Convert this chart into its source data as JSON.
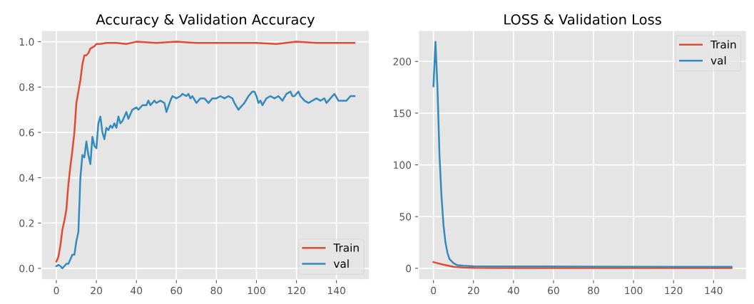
{
  "chart_data": [
    {
      "type": "line",
      "title": "Accuracy & Validation Accuracy",
      "xlim": [
        -7.45,
        156.45
      ],
      "ylim": [
        -0.05,
        1.05
      ],
      "xticks": [
        0,
        20,
        40,
        60,
        80,
        100,
        120,
        140
      ],
      "yticks": [
        {
          "value": 0,
          "label": "0.0"
        },
        {
          "value": 0.2,
          "label": "0.2"
        },
        {
          "value": 0.4,
          "label": "0.4"
        },
        {
          "value": 0.6,
          "label": "0.6"
        },
        {
          "value": 0.8,
          "label": "0.8"
        },
        {
          "value": 1,
          "label": "1.0"
        }
      ],
      "grid": true,
      "legend": "bottom right",
      "series": [
        {
          "name": "Train",
          "color": "#e24a33",
          "x": [
            0,
            1,
            2,
            3,
            4,
            5,
            6,
            7,
            8,
            9,
            10,
            11,
            12,
            13,
            14,
            15,
            16,
            17,
            18,
            19,
            20,
            22,
            25,
            30,
            35,
            40,
            50,
            60,
            70,
            80,
            90,
            100,
            110,
            120,
            130,
            140,
            149
          ],
          "values": [
            0.03,
            0.05,
            0.1,
            0.17,
            0.21,
            0.26,
            0.37,
            0.45,
            0.52,
            0.6,
            0.73,
            0.78,
            0.83,
            0.9,
            0.94,
            0.94,
            0.95,
            0.97,
            0.975,
            0.98,
            0.99,
            0.99,
            0.995,
            0.995,
            0.99,
            1.0,
            0.995,
            1.0,
            0.995,
            0.995,
            0.995,
            0.995,
            0.99,
            1.0,
            0.995,
            0.995,
            0.995
          ]
        },
        {
          "name": "val",
          "color": "#348abd",
          "x": [
            0,
            1,
            2,
            3,
            4,
            5,
            6,
            7,
            8,
            9,
            10,
            11,
            12,
            13,
            14,
            15,
            16,
            17,
            18,
            19,
            20,
            21,
            22,
            23,
            24,
            25,
            26,
            27,
            28,
            29,
            30,
            31,
            32,
            33,
            34,
            35,
            36,
            38,
            40,
            41,
            43,
            45,
            46,
            47,
            49,
            50,
            52,
            54,
            55,
            57,
            58,
            60,
            62,
            63,
            65,
            66,
            67,
            68,
            70,
            72,
            74,
            76,
            78,
            80,
            82,
            84,
            86,
            88,
            89,
            91,
            92,
            93,
            94,
            96,
            98,
            99,
            100,
            101,
            102,
            103,
            105,
            107,
            109,
            111,
            113,
            115,
            117,
            118,
            119,
            121,
            122,
            124,
            126,
            128,
            130,
            132,
            134,
            135,
            137,
            139,
            141,
            143,
            145,
            147,
            149
          ],
          "values": [
            0.01,
            0.015,
            0.01,
            0.0,
            0.01,
            0.02,
            0.02,
            0.04,
            0.06,
            0.06,
            0.12,
            0.16,
            0.4,
            0.5,
            0.49,
            0.56,
            0.5,
            0.46,
            0.58,
            0.54,
            0.53,
            0.64,
            0.67,
            0.6,
            0.57,
            0.62,
            0.61,
            0.63,
            0.62,
            0.64,
            0.62,
            0.67,
            0.64,
            0.65,
            0.67,
            0.69,
            0.66,
            0.7,
            0.71,
            0.7,
            0.72,
            0.72,
            0.74,
            0.72,
            0.74,
            0.73,
            0.74,
            0.73,
            0.69,
            0.74,
            0.76,
            0.75,
            0.76,
            0.77,
            0.76,
            0.77,
            0.75,
            0.76,
            0.73,
            0.75,
            0.75,
            0.73,
            0.75,
            0.75,
            0.76,
            0.75,
            0.76,
            0.75,
            0.73,
            0.7,
            0.71,
            0.72,
            0.73,
            0.76,
            0.78,
            0.78,
            0.76,
            0.73,
            0.74,
            0.72,
            0.75,
            0.76,
            0.75,
            0.76,
            0.74,
            0.77,
            0.78,
            0.76,
            0.76,
            0.78,
            0.76,
            0.74,
            0.73,
            0.74,
            0.75,
            0.74,
            0.75,
            0.73,
            0.75,
            0.77,
            0.74,
            0.74,
            0.74,
            0.76,
            0.76
          ]
        }
      ]
    },
    {
      "type": "line",
      "title": "LOSS & Validation Loss",
      "xlim": [
        -7.45,
        156.45
      ],
      "ylim": [
        -11,
        230
      ],
      "xticks": [
        0,
        20,
        40,
        60,
        80,
        100,
        120,
        140
      ],
      "yticks": [
        0,
        50,
        100,
        150,
        200
      ],
      "grid": true,
      "legend": "top right",
      "series": [
        {
          "name": "Train",
          "color": "#e24a33",
          "x": [
            0,
            2,
            5,
            10,
            15,
            20,
            40,
            80,
            120,
            149
          ],
          "values": [
            6,
            5,
            3.5,
            1.5,
            0.8,
            0.5,
            0.3,
            0.2,
            0.2,
            0.2
          ]
        },
        {
          "name": "val",
          "color": "#348abd",
          "x": [
            0,
            1,
            2,
            3,
            4,
            5,
            6,
            7,
            8,
            9,
            10,
            11,
            12,
            15,
            20,
            40,
            80,
            120,
            149
          ],
          "values": [
            176,
            219,
            175,
            110,
            70,
            42,
            25,
            15,
            9,
            7,
            5,
            4,
            3,
            2.5,
            2,
            1.8,
            1.6,
            1.5,
            1.5
          ]
        }
      ]
    }
  ]
}
